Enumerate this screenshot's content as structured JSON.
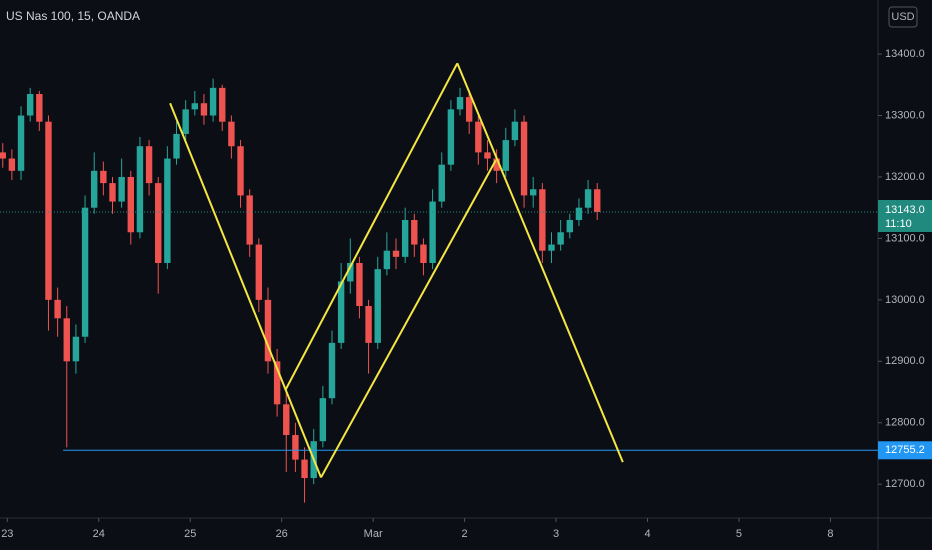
{
  "chart_data": {
    "type": "candlestick",
    "title": "US Nas 100, 15, OANDA",
    "currency": "USD",
    "up_color": "#26a69a",
    "down_color": "#ef5350",
    "x": [
      -0.05,
      0.05,
      0.15,
      0.25,
      0.35,
      0.45,
      0.55,
      0.65,
      0.75,
      0.85,
      0.95,
      1.05,
      1.15,
      1.25,
      1.35,
      1.45,
      1.55,
      1.65,
      1.75,
      1.85,
      1.95,
      2.05,
      2.15,
      2.25,
      2.35,
      2.45,
      2.55,
      2.65,
      2.75,
      2.85,
      2.95,
      3.05,
      3.15,
      3.25,
      3.35,
      3.45,
      3.55,
      3.65,
      3.75,
      3.85,
      3.95,
      4.05,
      4.15,
      4.25,
      4.35,
      4.45,
      4.55,
      4.65,
      4.75,
      4.85,
      4.95,
      5.05,
      5.15,
      5.25,
      5.35,
      5.45,
      5.55,
      5.65,
      5.75,
      5.85,
      5.95,
      6.05,
      6.15,
      6.25,
      6.35,
      6.45
    ],
    "open": [
      13240,
      13230,
      13210,
      13300,
      13335,
      13290,
      13000,
      12970,
      12900,
      12940,
      13150,
      13210,
      13190,
      13160,
      13200,
      13110,
      13250,
      13190,
      13060,
      13230,
      13270,
      13310,
      13320,
      13300,
      13345,
      13290,
      13250,
      13170,
      13090,
      13000,
      12900,
      12830,
      12780,
      12740,
      12710,
      12770,
      12840,
      12930,
      13030,
      13060,
      12990,
      12930,
      13050,
      13080,
      13070,
      13130,
      13090,
      13060,
      13160,
      13220,
      13310,
      13330,
      13290,
      13240,
      13230,
      13210,
      13260,
      13290,
      13170,
      13180,
      13080,
      13090,
      13110,
      13130,
      13150,
      13180
    ],
    "high": [
      13255,
      13245,
      13315,
      13345,
      13340,
      13300,
      13020,
      12990,
      12960,
      13170,
      13240,
      13225,
      13200,
      13230,
      13210,
      13265,
      13260,
      13200,
      13250,
      13290,
      13325,
      13340,
      13335,
      13360,
      13350,
      13300,
      13260,
      13180,
      13100,
      13020,
      12920,
      12850,
      12800,
      12760,
      12790,
      12860,
      12950,
      13060,
      13100,
      13070,
      13000,
      13070,
      13110,
      13100,
      13150,
      13140,
      13100,
      13180,
      13240,
      13325,
      13345,
      13340,
      13300,
      13260,
      13245,
      13280,
      13310,
      13300,
      13200,
      13190,
      13110,
      13130,
      13140,
      13165,
      13195,
      13190
    ],
    "low": [
      13215,
      13195,
      13195,
      13290,
      13275,
      12950,
      12940,
      12760,
      12880,
      12930,
      13140,
      13170,
      13140,
      13150,
      13090,
      13100,
      13170,
      13010,
      13050,
      13220,
      13260,
      13300,
      13285,
      13290,
      13275,
      13230,
      13150,
      13070,
      12980,
      12880,
      12810,
      12720,
      12720,
      12670,
      12700,
      12760,
      12830,
      12920,
      13010,
      12970,
      12880,
      12920,
      13040,
      13050,
      13060,
      13070,
      13040,
      13050,
      13150,
      13210,
      13300,
      13270,
      13220,
      13210,
      13190,
      13200,
      13250,
      13150,
      13150,
      13060,
      13060,
      13080,
      13100,
      13120,
      13140,
      13130
    ],
    "close": [
      13230,
      13210,
      13300,
      13335,
      13290,
      13000,
      12970,
      12900,
      12940,
      13150,
      13210,
      13190,
      13160,
      13200,
      13110,
      13250,
      13190,
      13060,
      13230,
      13270,
      13310,
      13320,
      13300,
      13345,
      13290,
      13250,
      13170,
      13090,
      13000,
      12900,
      12830,
      12780,
      12740,
      12710,
      12770,
      12840,
      12930,
      13030,
      13060,
      12990,
      12930,
      13050,
      13080,
      13070,
      13130,
      13090,
      13060,
      13160,
      13220,
      13310,
      13330,
      13290,
      13240,
      13230,
      13210,
      13260,
      13290,
      13170,
      13180,
      13080,
      13090,
      13110,
      13130,
      13150,
      13180,
      13143
    ],
    "xlim": [
      -0.08,
      9.52
    ],
    "xticks": [
      {
        "value": 0,
        "label": "23"
      },
      {
        "value": 1,
        "label": "24"
      },
      {
        "value": 2,
        "label": "25"
      },
      {
        "value": 3,
        "label": "26"
      },
      {
        "value": 4,
        "label": "Mar"
      },
      {
        "value": 5,
        "label": "2"
      },
      {
        "value": 6,
        "label": "3"
      },
      {
        "value": 7,
        "label": "4"
      },
      {
        "value": 8,
        "label": "5"
      },
      {
        "value": 9,
        "label": "8"
      }
    ],
    "ylim": [
      12645,
      13488
    ],
    "yticks": [
      {
        "value": 12700,
        "label": "12700.0"
      },
      {
        "value": 12800,
        "label": "12800.0"
      },
      {
        "value": 12900,
        "label": "12900.0"
      },
      {
        "value": 13000,
        "label": "13000.0"
      },
      {
        "value": 13100,
        "label": "13100.0"
      },
      {
        "value": 13200,
        "label": "13200.0"
      },
      {
        "value": 13300,
        "label": "13300.0"
      },
      {
        "value": 13400,
        "label": "13400.0"
      }
    ],
    "grid": false,
    "drawings": {
      "color": "#f5e642",
      "segments": [
        {
          "x": [
            1.78,
            3.43
          ],
          "y": [
            13320,
            12711
          ]
        },
        {
          "x": [
            3.04,
            4.92
          ],
          "y": [
            12853,
            13385
          ]
        },
        {
          "x": [
            3.43,
            5.34
          ],
          "y": [
            12711,
            13227
          ]
        },
        {
          "x": [
            4.92,
            6.73
          ],
          "y": [
            13385,
            12736
          ]
        }
      ]
    },
    "hline": {
      "value": 12755.2,
      "label": "12755.2",
      "x_start": 0.61,
      "color": "#2196f3"
    },
    "last_price": {
      "value": 13143,
      "label": "13143.0",
      "countdown": "11:10",
      "color": "#1f8a7d"
    }
  }
}
